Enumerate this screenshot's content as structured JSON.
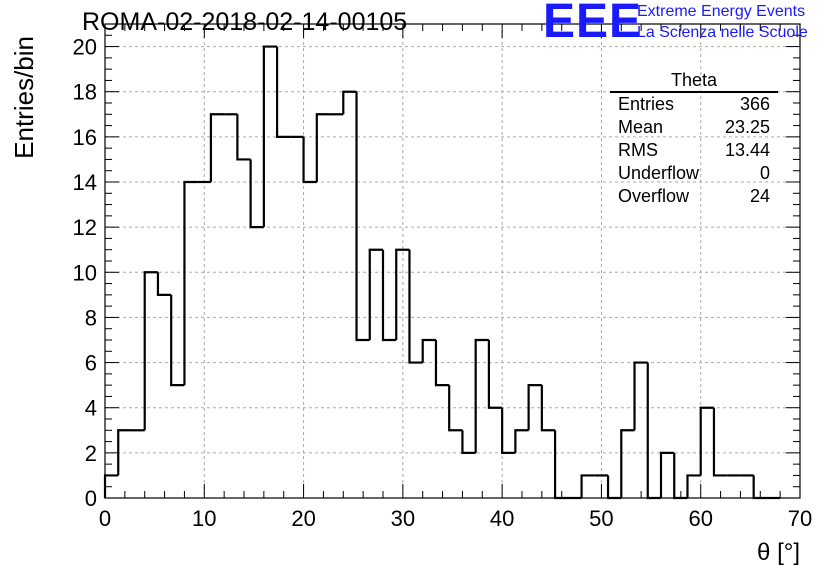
{
  "header": {
    "title": "ROMA-02-2018-02-14-00105"
  },
  "logo": {
    "mark": "EEE",
    "line1": "Extreme Energy Events",
    "line2": "La Scienza nelle Scuole",
    "color": "#1a1aff"
  },
  "stats": {
    "title": "Theta",
    "rows": [
      {
        "label": "Entries",
        "value": "366"
      },
      {
        "label": "Mean",
        "value": "23.25"
      },
      {
        "label": "RMS",
        "value": "13.44"
      },
      {
        "label": "Underflow",
        "value": "0"
      },
      {
        "label": "Overflow",
        "value": "24"
      }
    ]
  },
  "chart_data": {
    "type": "bar",
    "style": "step-histogram",
    "title": "ROMA-02-2018-02-14-00105",
    "xlabel": "θ [°]",
    "ylabel": "Entries/bin",
    "xlim": [
      0,
      70
    ],
    "ylim": [
      0,
      21
    ],
    "grid": true,
    "line_color": "#000000",
    "bin_width": 1.3333,
    "bin_low_edges": [
      0,
      1.3333,
      2.6667,
      4,
      5.3333,
      6.6667,
      8,
      9.3333,
      10.6667,
      12,
      13.3333,
      14.6667,
      16,
      17.3333,
      18.6667,
      20,
      21.3333,
      22.6667,
      24,
      25.3333,
      26.6667,
      28,
      29.3333,
      30.6667,
      32,
      33.3333,
      34.6667,
      36,
      37.3333,
      38.6667,
      40,
      41.3333,
      42.6667,
      44,
      45.3333,
      46.6667,
      48,
      49.3333,
      50.6667,
      52,
      53.3333,
      54.6667,
      56,
      57.3333,
      58.6667,
      60,
      61.3333,
      62.6667,
      64,
      65.3333,
      66.6667,
      68
    ],
    "values": [
      1,
      3,
      3,
      10,
      9,
      5,
      14,
      14,
      17,
      17,
      15,
      12,
      20,
      16,
      16,
      14,
      17,
      17,
      18,
      7,
      11,
      7,
      11,
      6,
      7,
      5,
      3,
      2,
      7,
      4,
      2,
      3,
      5,
      3,
      0,
      0,
      1,
      1,
      0,
      3,
      6,
      0,
      2,
      0,
      1,
      4,
      1,
      1,
      1,
      0,
      0
    ],
    "x_ticks": [
      "0",
      "10",
      "20",
      "30",
      "40",
      "50",
      "60",
      "70"
    ],
    "y_ticks": [
      "0",
      "2",
      "4",
      "6",
      "8",
      "10",
      "12",
      "14",
      "16",
      "18",
      "20"
    ]
  }
}
